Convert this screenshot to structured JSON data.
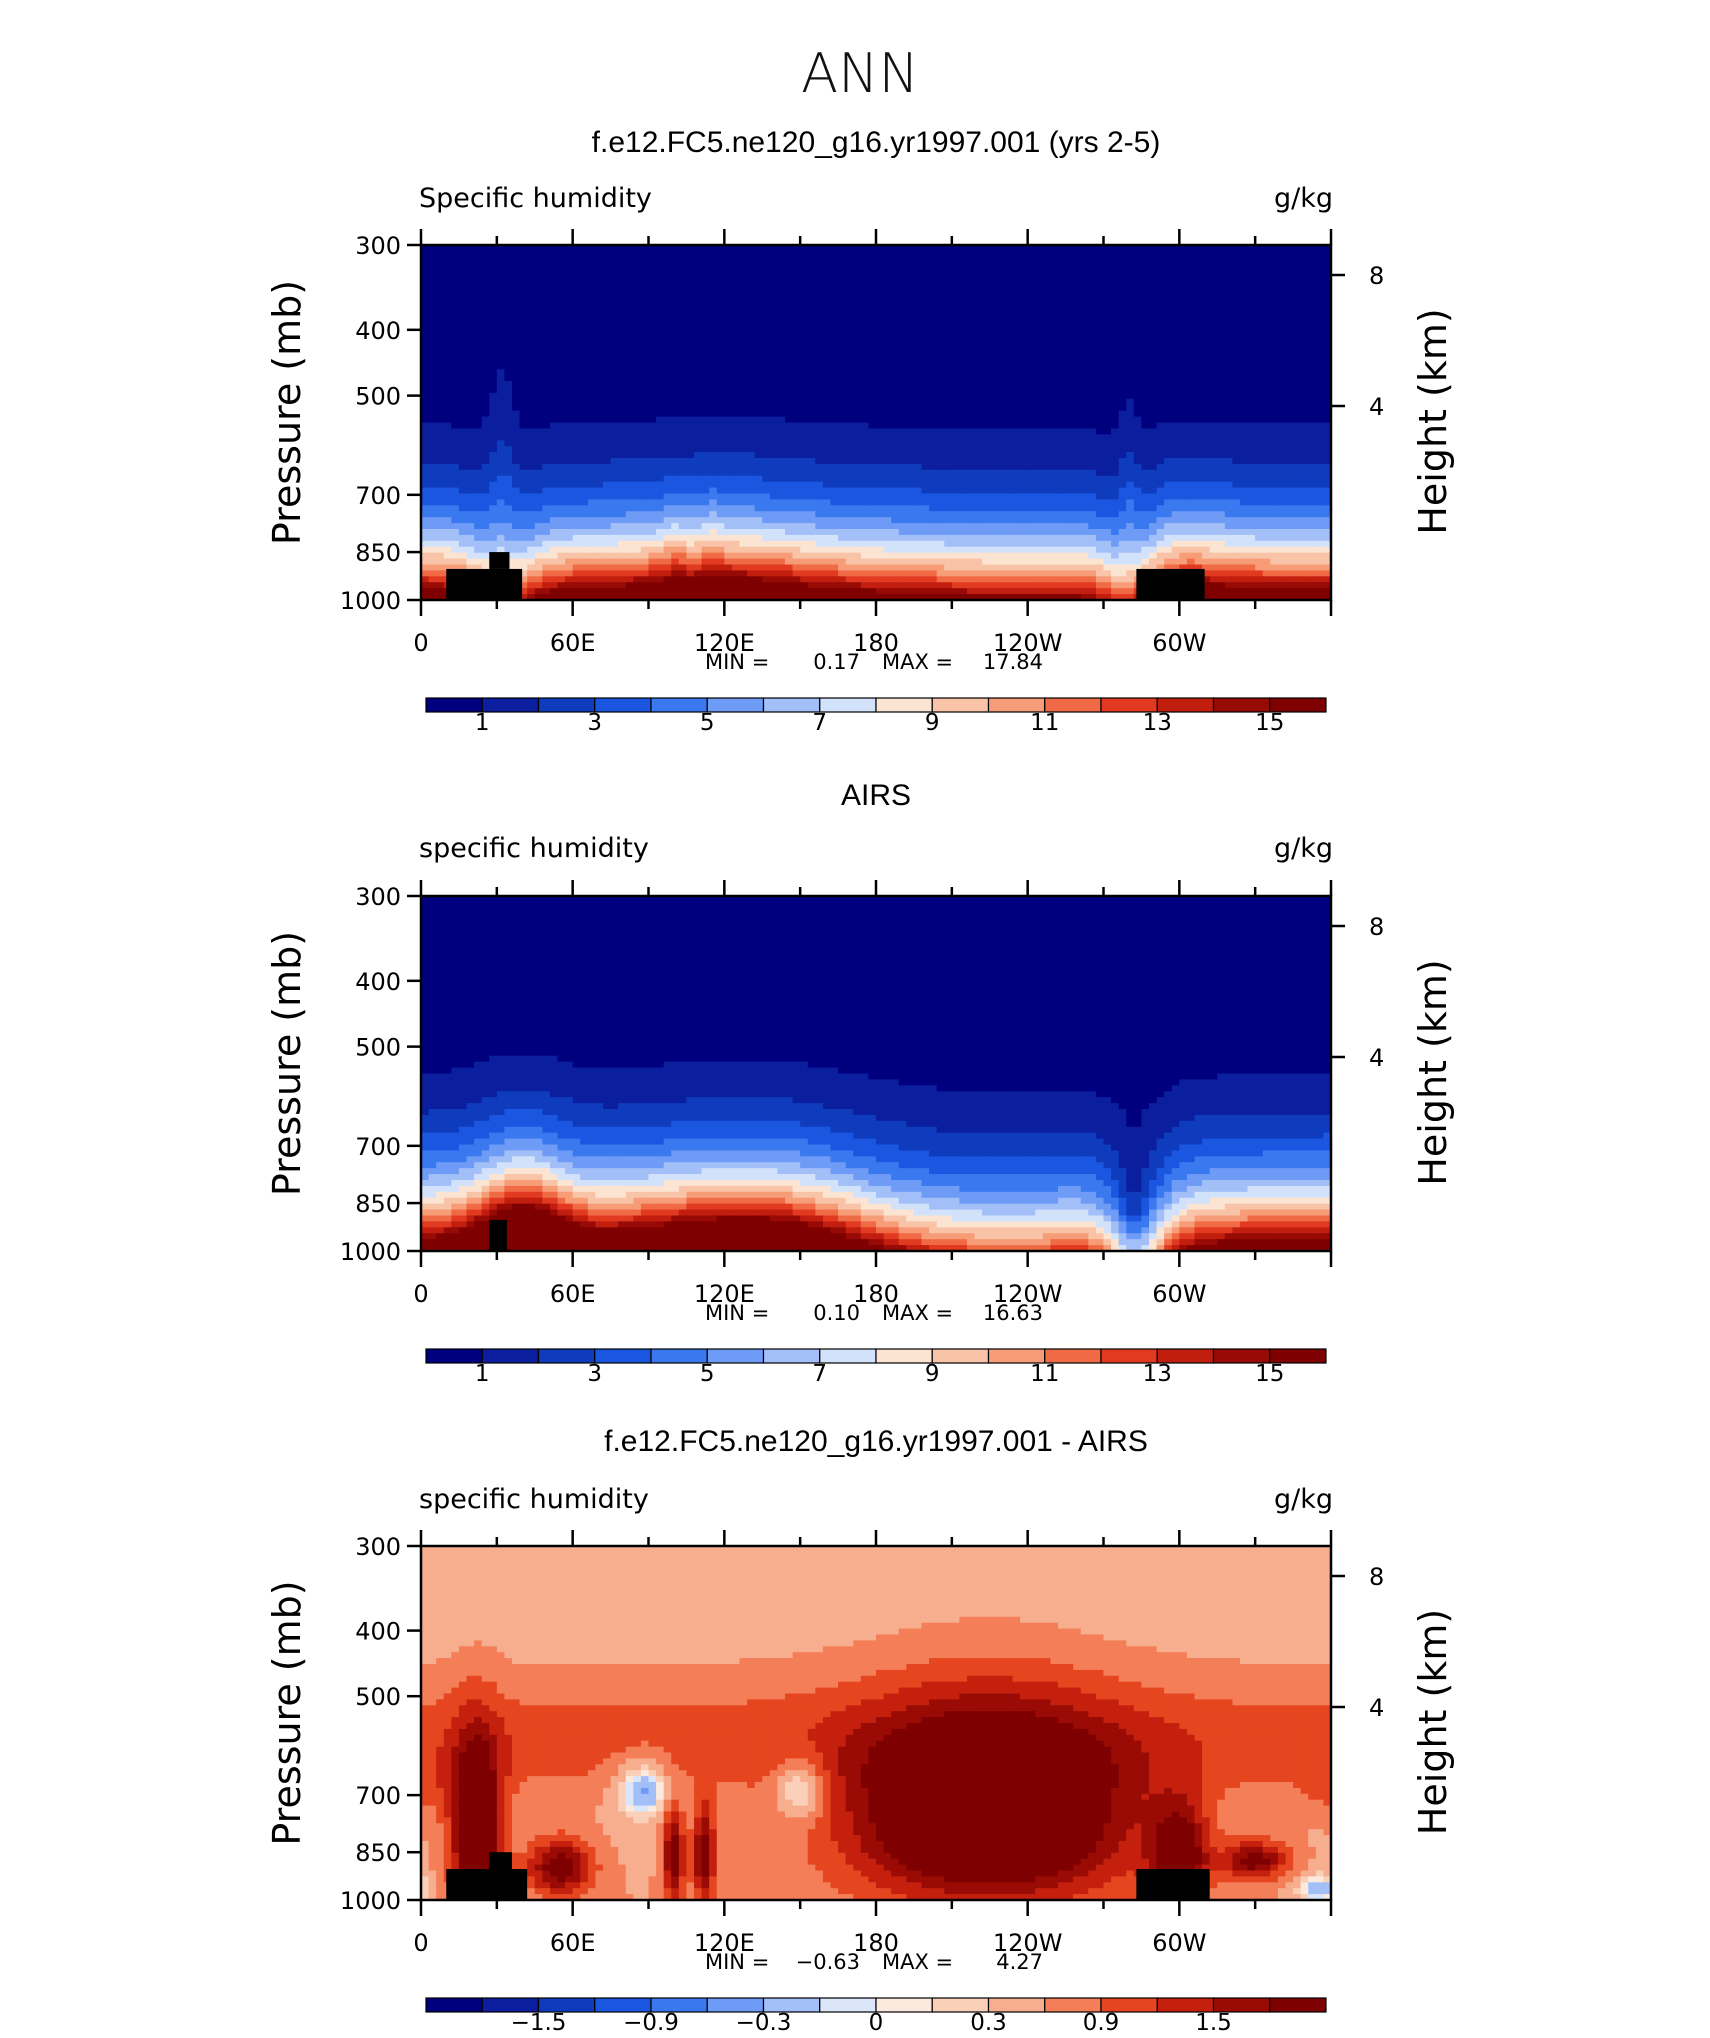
{
  "figure_title": "ANN",
  "colors": {
    "abs_levels": [
      "#00007f",
      "#0a1e9e",
      "#0f3bbd",
      "#1a56e0",
      "#3a78f0",
      "#6e9bf5",
      "#a3bff8",
      "#d3e2fb",
      "#fbe4d2",
      "#f9c3a8",
      "#f69d78",
      "#f06a45",
      "#e13a20",
      "#c11e0f",
      "#970a06",
      "#7f0000"
    ],
    "land_mask": "#000000"
  },
  "chart_data": [
    {
      "type": "heatmap",
      "title": "f.e12.FC5.ne120_g16.yr1997.001 (yrs 2-5)",
      "left_label": "Specific humidity",
      "right_label": "g/kg",
      "ylabel": "Pressure (mb)",
      "ylabel_right": "Height (km)",
      "x_ticks": [
        "0",
        "60E",
        "120E",
        "180",
        "120W",
        "60W"
      ],
      "x_tick_degrees": [
        0,
        60,
        120,
        180,
        240,
        300
      ],
      "xlim": [
        0,
        360
      ],
      "y_ticks": [
        "300",
        "400",
        "500",
        "700",
        "850",
        "1000"
      ],
      "y_tick_values": [
        300,
        400,
        500,
        700,
        850,
        1000
      ],
      "ylim": [
        1000,
        300
      ],
      "right_ticks": [
        "8",
        "4"
      ],
      "right_tick_values": [
        8,
        4
      ],
      "stats": {
        "min_label": "MIN =",
        "min": "0.17",
        "max_label": "MAX =",
        "max": "17.84"
      },
      "colorbar": {
        "labels": [
          "1",
          "3",
          "5",
          "7",
          "9",
          "11",
          "13",
          "15"
        ],
        "levels": [
          1,
          2,
          3,
          4,
          5,
          6,
          7,
          8,
          9,
          10,
          11,
          12,
          13,
          14,
          15
        ]
      },
      "field": "model",
      "mask": [
        [
          [
            10,
            40
          ],
          [
            900,
            1000
          ]
        ],
        [
          [
            27,
            35
          ],
          [
            850,
            900
          ]
        ],
        [
          [
            283,
            310
          ],
          [
            900,
            1000
          ]
        ]
      ]
    },
    {
      "type": "heatmap",
      "title": "AIRS",
      "left_label": "specific humidity",
      "right_label": "g/kg",
      "ylabel": "Pressure (mb)",
      "ylabel_right": "Height (km)",
      "x_ticks": [
        "0",
        "60E",
        "120E",
        "180",
        "120W",
        "60W"
      ],
      "x_tick_degrees": [
        0,
        60,
        120,
        180,
        240,
        300
      ],
      "xlim": [
        0,
        360
      ],
      "y_ticks": [
        "300",
        "400",
        "500",
        "700",
        "850",
        "1000"
      ],
      "y_tick_values": [
        300,
        400,
        500,
        700,
        850,
        1000
      ],
      "ylim": [
        1000,
        300
      ],
      "right_ticks": [
        "8",
        "4"
      ],
      "right_tick_values": [
        8,
        4
      ],
      "stats": {
        "min_label": "MIN =",
        "min": "0.10",
        "max_label": "MAX =",
        "max": "16.63"
      },
      "colorbar": {
        "labels": [
          "1",
          "3",
          "5",
          "7",
          "9",
          "11",
          "13",
          "15"
        ],
        "levels": [
          1,
          2,
          3,
          4,
          5,
          6,
          7,
          8,
          9,
          10,
          11,
          12,
          13,
          14,
          15
        ]
      },
      "field": "obs",
      "mask": [
        [
          [
            27,
            34
          ],
          [
            900,
            1000
          ]
        ]
      ]
    },
    {
      "type": "heatmap",
      "title": "f.e12.FC5.ne120_g16.yr1997.001 - AIRS",
      "left_label": "specific humidity",
      "right_label": "g/kg",
      "ylabel": "Pressure (mb)",
      "ylabel_right": "Height (km)",
      "x_ticks": [
        "0",
        "60E",
        "120E",
        "180",
        "120W",
        "60W"
      ],
      "x_tick_degrees": [
        0,
        60,
        120,
        180,
        240,
        300
      ],
      "xlim": [
        0,
        360
      ],
      "y_ticks": [
        "300",
        "400",
        "500",
        "700",
        "850",
        "1000"
      ],
      "y_tick_values": [
        300,
        400,
        500,
        700,
        850,
        1000
      ],
      "ylim": [
        1000,
        300
      ],
      "right_ticks": [
        "8",
        "4"
      ],
      "right_tick_values": [
        8,
        4
      ],
      "stats": {
        "min_label": "MIN =",
        "min": "−0.63",
        "max_label": "MAX =",
        "max": "4.27"
      },
      "colorbar": {
        "labels": [
          "−1.5",
          "−0.9",
          "−0.3",
          "0",
          "0.3",
          "0.9",
          "1.5"
        ],
        "levels": [
          -1.8,
          -1.5,
          -1.2,
          -0.9,
          -0.6,
          -0.3,
          -0.1,
          0,
          0.1,
          0.3,
          0.6,
          0.9,
          1.2,
          1.5,
          1.8
        ]
      },
      "field": "diff",
      "mask": [
        [
          [
            10,
            42
          ],
          [
            900,
            1000
          ]
        ],
        [
          [
            27,
            36
          ],
          [
            850,
            900
          ]
        ],
        [
          [
            283,
            312
          ],
          [
            900,
            1000
          ]
        ]
      ]
    }
  ]
}
